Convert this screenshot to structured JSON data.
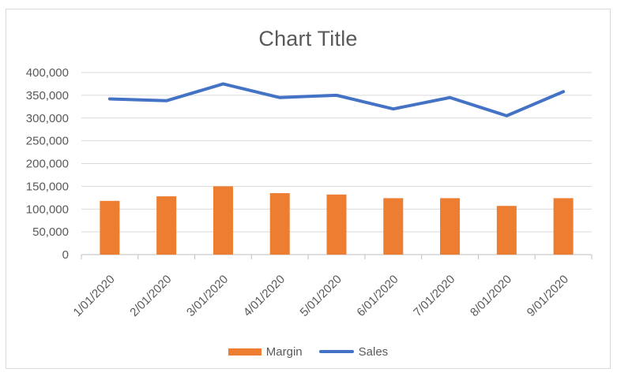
{
  "chart_title": "Chart Title",
  "legend": {
    "items": [
      {
        "label": "Margin",
        "swatch": "bar"
      },
      {
        "label": "Sales",
        "swatch": "line"
      }
    ]
  },
  "colors": {
    "bar_orange": "#ED7D31",
    "line_blue": "#4472C4",
    "text_gray": "#595959",
    "gridline": "#D9D9D9",
    "axis_line": "#BFBFBF",
    "frame_border": "#D9D9D9"
  },
  "chart_data": {
    "type": "combo",
    "title": "Chart Title",
    "categories": [
      "1/01/2020",
      "2/01/2020",
      "3/01/2020",
      "4/01/2020",
      "5/01/2020",
      "6/01/2020",
      "7/01/2020",
      "8/01/2020",
      "9/01/2020"
    ],
    "series": [
      {
        "name": "Margin",
        "type": "bar",
        "color": "#ED7D31",
        "values": [
          118000,
          128000,
          150000,
          135000,
          132000,
          124000,
          124000,
          107000,
          124000
        ]
      },
      {
        "name": "Sales",
        "type": "line",
        "color": "#4472C4",
        "values": [
          342000,
          338000,
          375000,
          345000,
          350000,
          320000,
          345000,
          305000,
          358000
        ]
      }
    ],
    "xlabel": "",
    "ylabel": "",
    "ylim": [
      0,
      400000
    ],
    "ytick_step": 50000,
    "ytick_labels": [
      "0",
      "50,000",
      "100,000",
      "150,000",
      "200,000",
      "250,000",
      "300,000",
      "350,000",
      "400,000"
    ],
    "grid": true,
    "legend_position": "bottom",
    "x_label_rotation": -45
  }
}
